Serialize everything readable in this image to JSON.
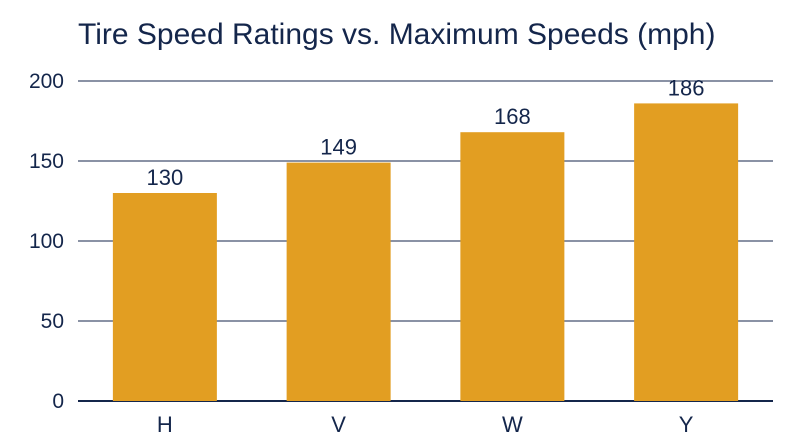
{
  "chart_data": {
    "type": "bar",
    "title": "Tire Speed Ratings vs. Maximum Speeds (mph)",
    "xlabel": "",
    "ylabel": "",
    "categories": [
      "H",
      "V",
      "W",
      "Y"
    ],
    "values": [
      130,
      149,
      168,
      186
    ],
    "ylim": [
      0,
      200
    ],
    "yticks": [
      0,
      50,
      100,
      150,
      200
    ],
    "grid": true,
    "legend": "none",
    "colors": {
      "bar": "#E29E22",
      "grid": "#14264b",
      "text": "#14264b"
    }
  }
}
